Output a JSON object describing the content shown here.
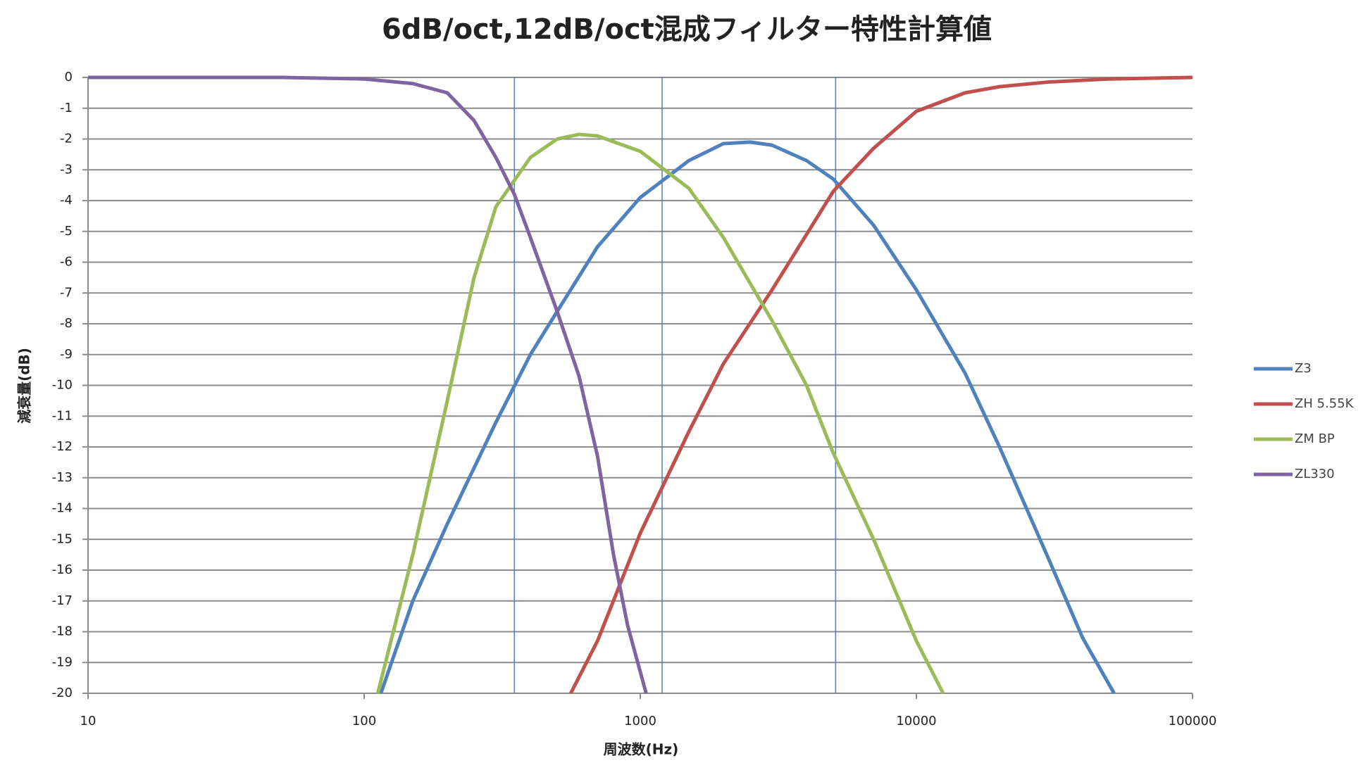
{
  "chart_data": {
    "type": "line",
    "title": "6dB/oct,12dB/oct混成フィルター特性計算値",
    "x_label": "周波数(Hz)",
    "y_label": "減衰量(dB)",
    "x_scale": "log",
    "xlim": [
      10,
      100000
    ],
    "xticks": [
      10,
      100,
      1000,
      10000,
      100000
    ],
    "ylim": [
      -20,
      0
    ],
    "yticks": [
      0,
      -1,
      -2,
      -3,
      -4,
      -5,
      -6,
      -7,
      -8,
      -9,
      -10,
      -11,
      -12,
      -13,
      -14,
      -15,
      -16,
      -17,
      -18,
      -19,
      -20
    ],
    "grid": true,
    "legend": "right",
    "reference_lines": [
      350,
      1200,
      5100
    ],
    "reference_color": "#4f81bd",
    "series": [
      {
        "name": "Z3",
        "color": "#4f81bd",
        "x": [
          115,
          150,
          200,
          300,
          400,
          500,
          700,
          1000,
          1500,
          2000,
          2500,
          3000,
          4000,
          5000,
          7000,
          10000,
          15000,
          20000,
          30000,
          40000,
          52000
        ],
        "values": [
          -20,
          -17,
          -14.5,
          -11.2,
          -9,
          -7.6,
          -5.5,
          -3.9,
          -2.7,
          -2.15,
          -2.1,
          -2.2,
          -2.7,
          -3.3,
          -4.8,
          -6.9,
          -9.6,
          -12,
          -15.6,
          -18.2,
          -20
        ]
      },
      {
        "name": "ZH 5.55K",
        "color": "#c0504d",
        "x": [
          560,
          700,
          1000,
          1500,
          2000,
          3000,
          4000,
          5000,
          7000,
          10000,
          15000,
          20000,
          30000,
          50000,
          100000
        ],
        "values": [
          -20,
          -18.3,
          -14.8,
          -11.5,
          -9.3,
          -6.9,
          -5.1,
          -3.7,
          -2.3,
          -1.1,
          -0.5,
          -0.3,
          -0.15,
          -0.05,
          0
        ]
      },
      {
        "name": "ZM BP",
        "color": "#9bbb59",
        "x": [
          112,
          150,
          200,
          250,
          300,
          400,
          500,
          600,
          700,
          1000,
          1500,
          2000,
          3000,
          4000,
          5000,
          7000,
          10000,
          12500
        ],
        "values": [
          -20,
          -15.5,
          -10.5,
          -6.5,
          -4.2,
          -2.6,
          -2,
          -1.85,
          -1.9,
          -2.4,
          -3.6,
          -5.2,
          -7.9,
          -10,
          -12.2,
          -15,
          -18.3,
          -20
        ]
      },
      {
        "name": "ZL330",
        "color": "#8064a2",
        "x": [
          10,
          50,
          100,
          150,
          200,
          250,
          300,
          350,
          400,
          500,
          600,
          700,
          800,
          900,
          1050
        ],
        "values": [
          0,
          0,
          -0.05,
          -0.2,
          -0.5,
          -1.4,
          -2.6,
          -3.8,
          -5.2,
          -7.6,
          -9.7,
          -12.3,
          -15.5,
          -17.8,
          -20
        ]
      }
    ]
  }
}
